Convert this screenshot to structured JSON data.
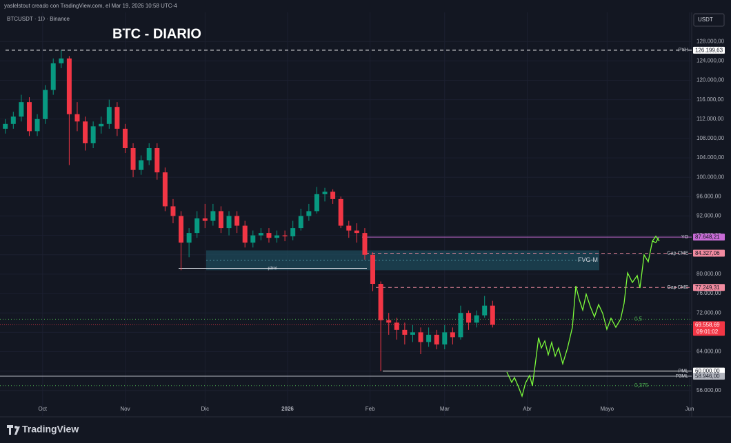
{
  "chart_data": {
    "type": "candlestick",
    "watermark": "yaslelstout creado con TradingView.com, el Mar 19, 2026 10:58 UTC-4",
    "symbol": "BTCUSDT · 1D · Binance",
    "title": "BTC - DIARIO",
    "currency": "USDT",
    "brand": "TradingView",
    "up_color": "#089981",
    "down_color": "#f23645",
    "x": [
      -14,
      -11,
      -8,
      -5,
      -2,
      1,
      4,
      7,
      10,
      13,
      16,
      19,
      22,
      25,
      28,
      31,
      34,
      37,
      40,
      43,
      46,
      49,
      52,
      55,
      58,
      61,
      64,
      67,
      70,
      73,
      76,
      79,
      82,
      85,
      88,
      91,
      94,
      97,
      100,
      103,
      106,
      109,
      112,
      115,
      118,
      121,
      124,
      127,
      130,
      133,
      136,
      139,
      142,
      145,
      148,
      151,
      154,
      157,
      160,
      163,
      166,
      169
    ],
    "open": [
      110000,
      111000,
      112500,
      115500,
      109500,
      112000,
      118000,
      123500,
      124500,
      113000,
      111500,
      107000,
      110500,
      111000,
      114500,
      110000,
      106000,
      101500,
      103500,
      106000,
      101000,
      94000,
      92000,
      86500,
      88500,
      91500,
      91000,
      93000,
      89500,
      92000,
      90000,
      86500,
      88000,
      88500,
      87500,
      88000,
      87800,
      89500,
      92000,
      93000,
      96500,
      97000,
      95500,
      90000,
      89000,
      88500,
      84000,
      78000,
      70500,
      70000,
      68500,
      67500,
      68000,
      66000,
      67500,
      65500,
      68000,
      67000,
      72000,
      70000,
      71500,
      73500
    ],
    "high": [
      112000,
      113500,
      117000,
      116500,
      113000,
      119000,
      124500,
      126200,
      125000,
      115500,
      112500,
      111500,
      112500,
      116000,
      115500,
      111000,
      107000,
      104500,
      107000,
      107000,
      102000,
      95500,
      93000,
      89500,
      93000,
      94500,
      94500,
      94000,
      93000,
      93000,
      91000,
      89000,
      89500,
      89500,
      89000,
      89000,
      91000,
      93500,
      94500,
      98000,
      97800,
      97500,
      96000,
      91000,
      90500,
      89500,
      84500,
      78500,
      72000,
      71000,
      70000,
      69500,
      69000,
      69000,
      68500,
      69500,
      69000,
      73500,
      72500,
      72500,
      75500,
      74500
    ],
    "low": [
      109000,
      110000,
      111500,
      108500,
      108500,
      111000,
      117000,
      122500,
      102500,
      109500,
      105500,
      106000,
      109000,
      110000,
      108500,
      105000,
      100000,
      100500,
      102500,
      99500,
      93000,
      90500,
      80800,
      83500,
      87500,
      89500,
      90000,
      88500,
      88000,
      88500,
      85500,
      85500,
      87000,
      86500,
      86500,
      86800,
      87000,
      89000,
      91000,
      92500,
      95000,
      94500,
      89500,
      87500,
      86500,
      83000,
      76500,
      60000,
      67500,
      66500,
      65500,
      66000,
      63500,
      65000,
      64500,
      64500,
      65500,
      66500,
      68500,
      69000,
      71000,
      69000
    ],
    "close": [
      111000,
      112500,
      115500,
      109500,
      112000,
      118000,
      123500,
      124500,
      113000,
      111500,
      107000,
      110500,
      111000,
      114500,
      110000,
      106000,
      101500,
      103500,
      106000,
      101000,
      94000,
      92000,
      86500,
      88500,
      91500,
      91000,
      93000,
      89500,
      92000,
      90000,
      86500,
      88000,
      88500,
      87500,
      88000,
      87800,
      89500,
      92000,
      93000,
      96500,
      97000,
      95500,
      90000,
      89000,
      88500,
      84000,
      78000,
      70500,
      70000,
      68500,
      67500,
      68000,
      66000,
      67500,
      65500,
      68000,
      67000,
      72000,
      70000,
      71500,
      73500,
      69558.69
    ],
    "xlim": [
      -16,
      243
    ],
    "xticks": [
      {
        "value": 0,
        "label": "Oct"
      },
      {
        "value": 31,
        "label": "Nov"
      },
      {
        "value": 61,
        "label": "Dic"
      },
      {
        "value": 92,
        "label": "2026"
      },
      {
        "value": 123,
        "label": "Feb"
      },
      {
        "value": 151,
        "label": "Mar"
      },
      {
        "value": 182,
        "label": "Abr"
      },
      {
        "value": 212,
        "label": "Mayo"
      },
      {
        "value": 243,
        "label": "Jun"
      }
    ],
    "ylim": [
      52700,
      134000
    ],
    "yticks": [
      {
        "value": 56000,
        "label": "56.000,00"
      },
      {
        "value": 60000,
        "label": "60.000,00"
      },
      {
        "value": 64000,
        "label": "64.000,00"
      },
      {
        "value": 68000,
        "label": "68.000,00"
      },
      {
        "value": 72000,
        "label": "72.000,00"
      },
      {
        "value": 76000,
        "label": "76.000,00"
      },
      {
        "value": 80000,
        "label": "80.000,00"
      },
      {
        "value": 84000,
        "label": "84.000,00"
      },
      {
        "value": 88000,
        "label": "88.000,00"
      },
      {
        "value": 92000,
        "label": "92.000,00"
      },
      {
        "value": 96000,
        "label": "96.000,00"
      },
      {
        "value": 100000,
        "label": "100.000,00"
      },
      {
        "value": 104000,
        "label": "104.000,00"
      },
      {
        "value": 108000,
        "label": "108.000,00"
      },
      {
        "value": 112000,
        "label": "112.000,00"
      },
      {
        "value": 116000,
        "label": "116.000,00"
      },
      {
        "value": 120000,
        "label": "120.000,00"
      },
      {
        "value": 124000,
        "label": "124.000,00"
      },
      {
        "value": 128000,
        "label": "128.000,00"
      }
    ],
    "grid": true,
    "levels": [
      {
        "name": "PYH",
        "value": 126199.63,
        "label": "126.199,63",
        "color": "#ffffff",
        "style": "dashed"
      },
      {
        "name": "YO",
        "value": 87648.21,
        "label": "87.648,21",
        "color": "#c86bd6",
        "style": "solid"
      },
      {
        "name": "Gap CME",
        "value": 84327.06,
        "label": "84.327,06",
        "color": "#f28ba0",
        "style": "dashed"
      },
      {
        "name": "Gap CME",
        "value": 77249.31,
        "label": "77.249,31",
        "color": "#f28ba0",
        "style": "dashed"
      },
      {
        "name": "PML",
        "value": 60000,
        "label": "60.000,00",
        "color": "#ffffff",
        "style": "solid"
      },
      {
        "name": "P3ML",
        "value": 58946,
        "label": "58.946,00",
        "color": "#b2b5be",
        "style": "solid"
      }
    ],
    "fib_levels": [
      {
        "name": "0,5",
        "value": 70700,
        "color": "#4caf50"
      },
      {
        "name": "0,375",
        "value": 57000,
        "color": "#4caf50"
      }
    ],
    "zone": {
      "name": "FVG-M",
      "from": 80800,
      "to": 84900,
      "color": "#1d4a5a"
    },
    "p3ml_line": {
      "name": "p3ml",
      "value": 81200
    },
    "current_price": {
      "value": 69558.69,
      "label": "69.558,69",
      "countdown": "09:01:02",
      "color": "#f23645"
    }
  }
}
